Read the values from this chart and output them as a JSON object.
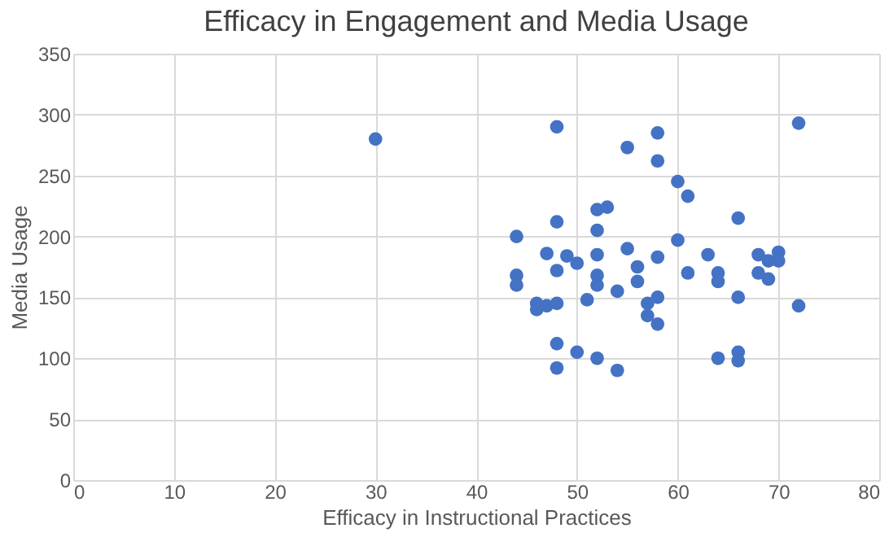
{
  "chart_data": {
    "type": "scatter",
    "title": "Efficacy in Engagement and Media Usage",
    "xlabel": "Efficacy in Instructional Practices",
    "ylabel": "Media Usage",
    "x": [
      30,
      48,
      58,
      72,
      55,
      58,
      60,
      61,
      44,
      48,
      52,
      53,
      66,
      47,
      49,
      50,
      52,
      52,
      52,
      52,
      55,
      56,
      56,
      58,
      60,
      61,
      63,
      64,
      64,
      66,
      68,
      68,
      69,
      69,
      70,
      70,
      72,
      44,
      44,
      46,
      46,
      47,
      48,
      48,
      51,
      54,
      57,
      57,
      58,
      58,
      48,
      48,
      50,
      52,
      54,
      64,
      66,
      66
    ],
    "series": [
      {
        "color": "#4472c4",
        "values": [
          280,
          290,
          285,
          293,
          273,
          262,
          245,
          233,
          200,
          212,
          222,
          224,
          215,
          186,
          184,
          178,
          205,
          185,
          168,
          160,
          190,
          175,
          163,
          183,
          197,
          170,
          185,
          170,
          163,
          150,
          185,
          170,
          180,
          165,
          187,
          180,
          143,
          168,
          160,
          145,
          140,
          143,
          145,
          172,
          148,
          155,
          145,
          135,
          128,
          150,
          112,
          92,
          105,
          100,
          90,
          100,
          105,
          98
        ]
      }
    ],
    "xlim": [
      0,
      80
    ],
    "xticks": [
      0,
      10,
      20,
      30,
      40,
      50,
      60,
      70,
      80
    ],
    "ylim": [
      0,
      350
    ],
    "yticks": [
      0,
      50,
      100,
      150,
      200,
      250,
      300,
      350
    ],
    "grid": true,
    "legend": false,
    "marker": "circle"
  }
}
